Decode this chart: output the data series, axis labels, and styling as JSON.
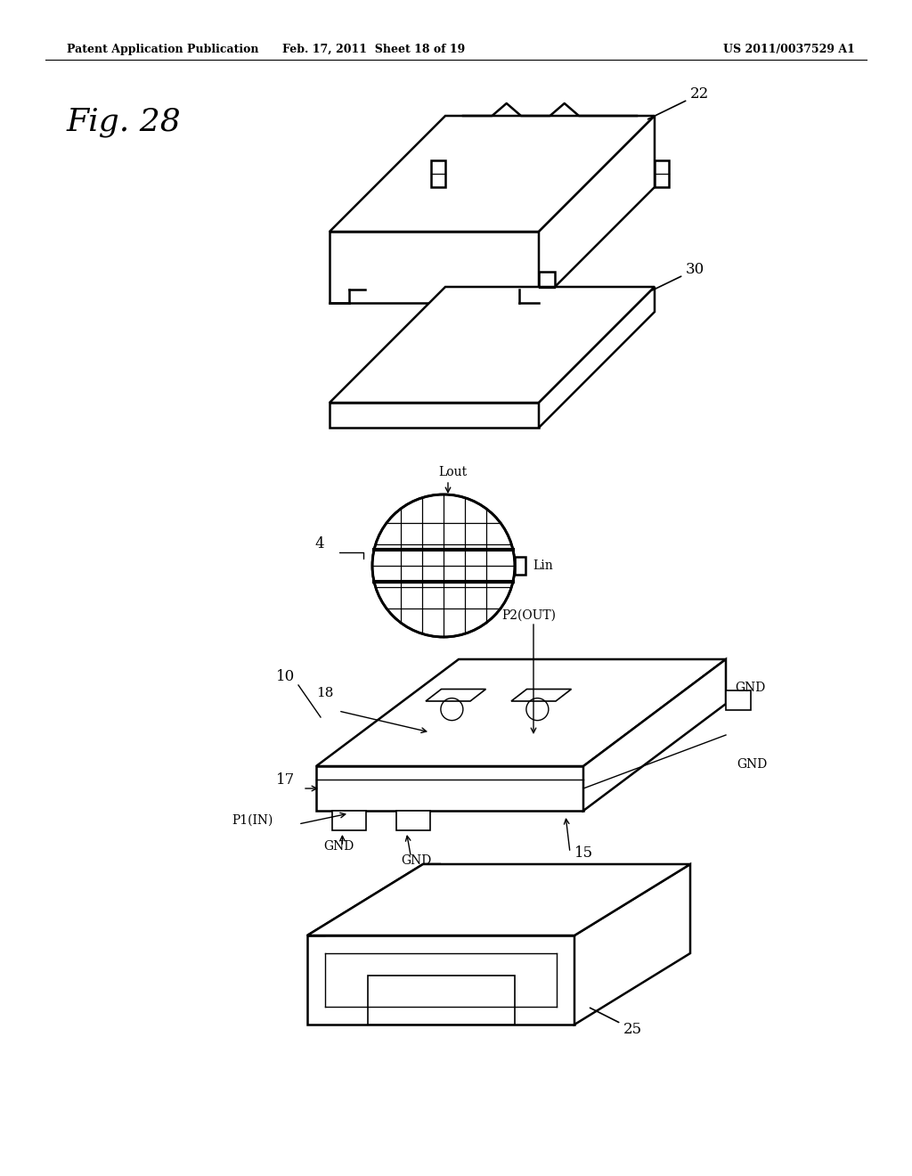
{
  "background_color": "#ffffff",
  "header_left": "Patent Application Publication",
  "header_mid": "Feb. 17, 2011  Sheet 18 of 19",
  "header_right": "US 2011/0037529 A1",
  "fig_label": "Fig. 28"
}
